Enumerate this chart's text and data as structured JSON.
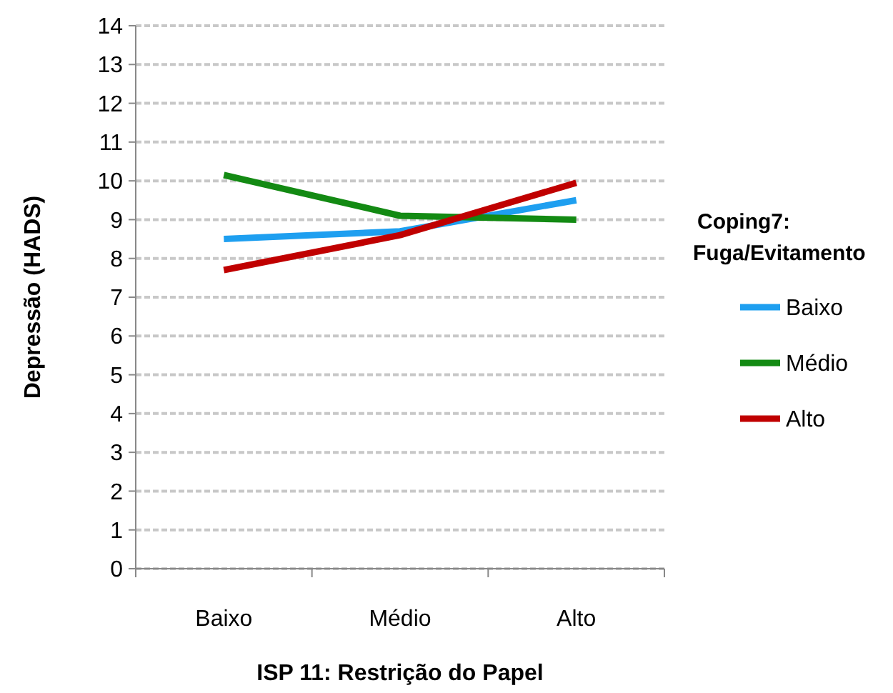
{
  "chart_data": {
    "type": "line",
    "xlabel": "ISP 11:  Restrição do Papel",
    "ylabel": "Depressão (HADS)",
    "legend_title": "Coping7: Fuga/Evitamento",
    "categories": [
      "Baixo",
      "Médio",
      "Alto"
    ],
    "series": [
      {
        "name": "Baixo",
        "color": "#1e9ff0",
        "values": [
          8.5,
          8.7,
          9.5
        ]
      },
      {
        "name": "Médio",
        "color": "#138a13",
        "values": [
          10.15,
          9.1,
          9.0
        ]
      },
      {
        "name": "Alto",
        "color": "#c00000",
        "values": [
          7.7,
          8.6,
          9.95
        ]
      }
    ],
    "ylim": [
      0,
      14
    ],
    "yticks": [
      0,
      1,
      2,
      3,
      4,
      5,
      6,
      7,
      8,
      9,
      10,
      11,
      12,
      13,
      14
    ],
    "grid": "y",
    "legend": "right",
    "marker": "none",
    "line_style": "solid"
  }
}
